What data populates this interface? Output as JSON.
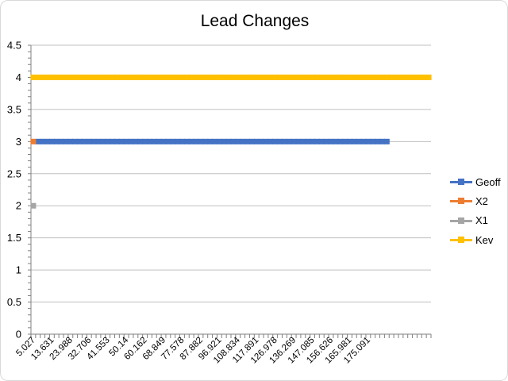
{
  "chart_data": {
    "type": "line",
    "title": "Lead Changes",
    "xlabel": "",
    "ylabel": "",
    "ylim": [
      0,
      4.5
    ],
    "y_ticks": [
      "0",
      "0.5",
      "1",
      "1.5",
      "2",
      "2.5",
      "3",
      "3.5",
      "4",
      "4.5"
    ],
    "x_tick_labels": [
      "5.027",
      "13.631",
      "23.988",
      "32.706",
      "41.553",
      "50.14",
      "60.162",
      "68.849",
      "77.578",
      "87.882",
      "96.921",
      "108.834",
      "117.891",
      "126.978",
      "136.269",
      "147.085",
      "156.626",
      "165.981",
      "175.091"
    ],
    "x_category_count": 86,
    "grid": true,
    "legend_position": "right",
    "series": [
      {
        "name": "Geoff",
        "color": "#4472c4",
        "value": 3,
        "start_index": 1,
        "end_index": 76
      },
      {
        "name": "X2",
        "color": "#ed7d31",
        "value": 3,
        "start_index": 0,
        "end_index": 0
      },
      {
        "name": "X1",
        "color": "#a5a5a5",
        "value": 2,
        "start_index": 0,
        "end_index": 0
      },
      {
        "name": "Kev",
        "color": "#ffc000",
        "value": 4,
        "start_index": 0,
        "end_index": 85
      }
    ]
  }
}
